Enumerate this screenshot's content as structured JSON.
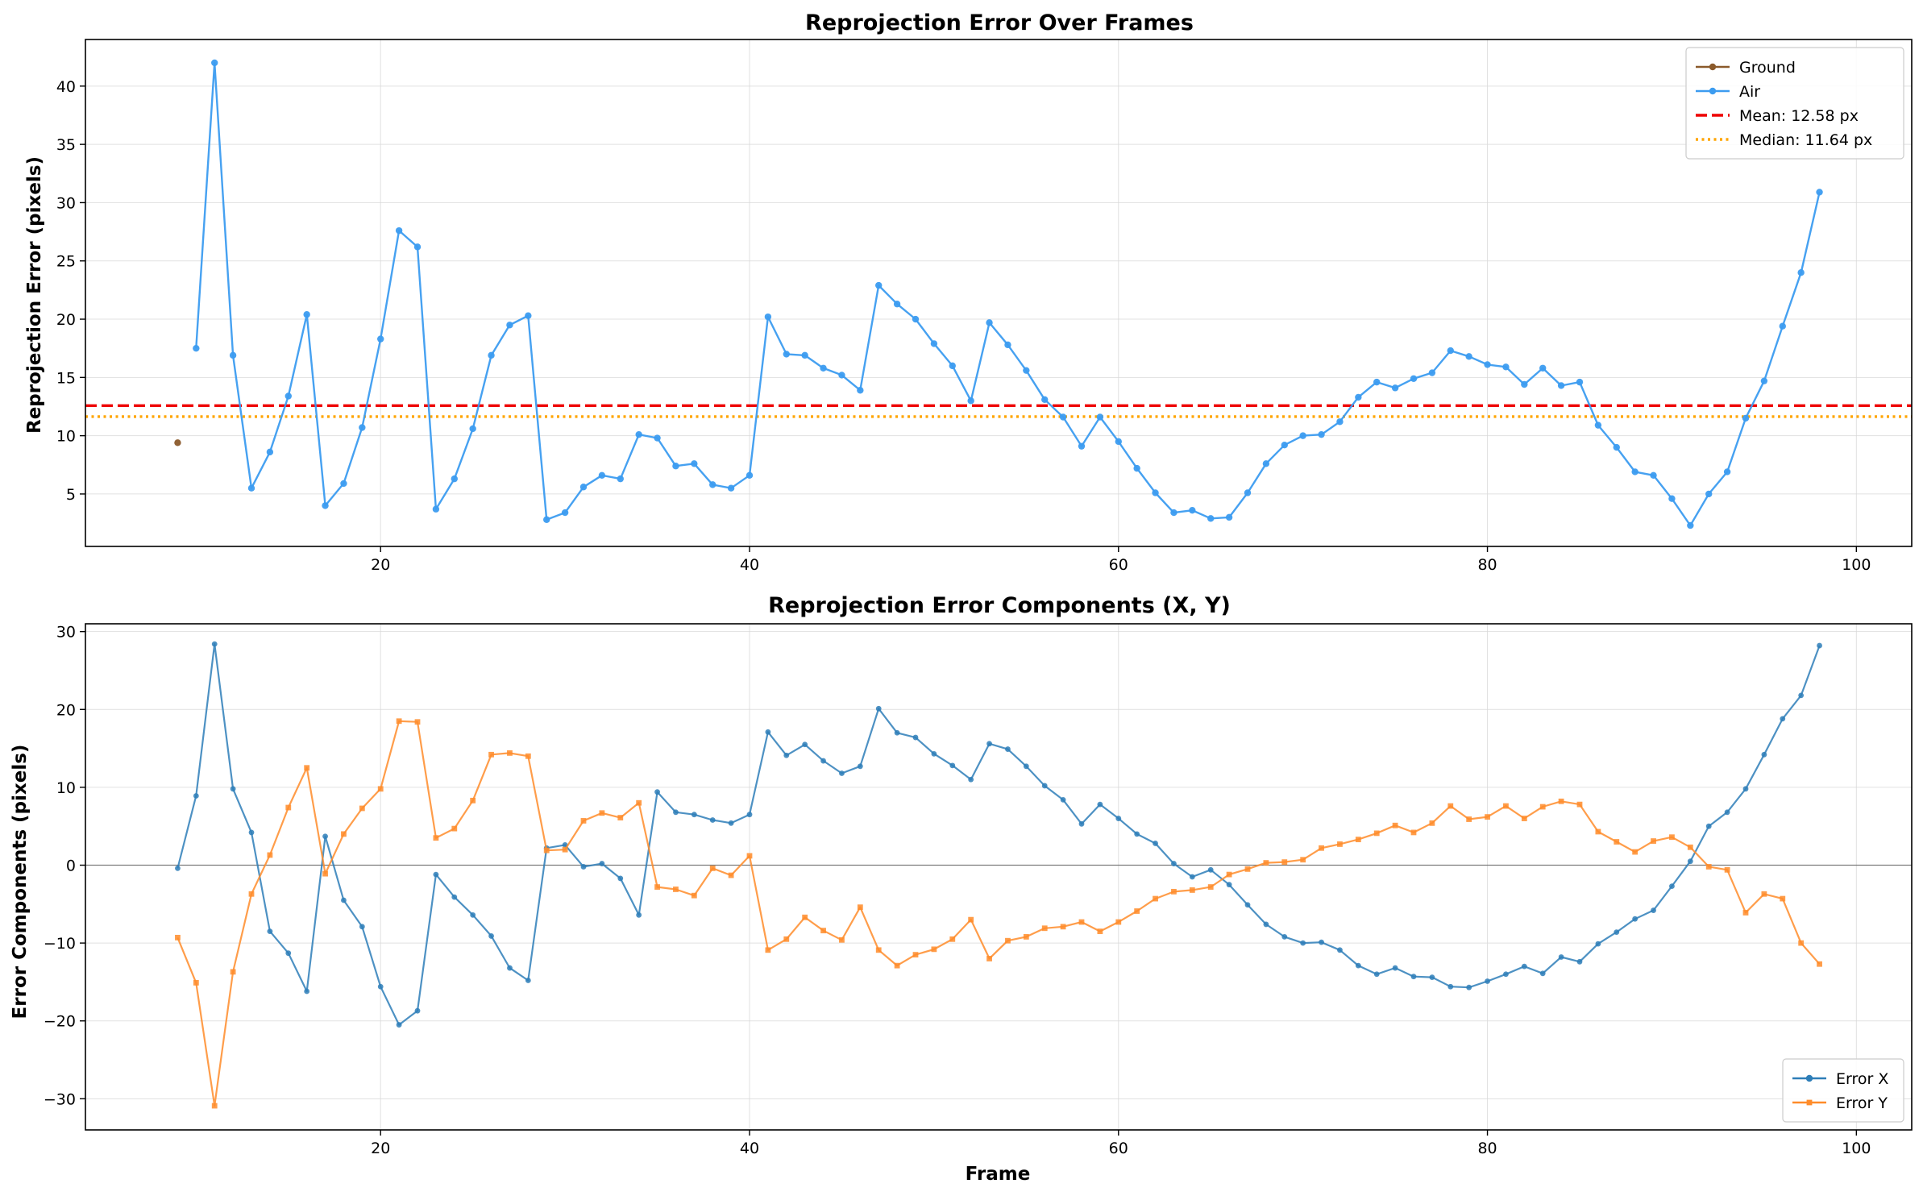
{
  "chart_data": [
    {
      "type": "line",
      "title": "Reprojection Error Over Frames",
      "xlabel": "",
      "ylabel": "Reprojection Error (pixels)",
      "xlim": [
        4,
        103
      ],
      "ylim": [
        0.5,
        44
      ],
      "x_ticks": [
        20,
        40,
        60,
        80,
        100
      ],
      "y_ticks": [
        5,
        10,
        15,
        20,
        25,
        30,
        35,
        40
      ],
      "grid": true,
      "legend_position": "top-right",
      "series": [
        {
          "name": "Ground",
          "color": "#8B5A2B",
          "marker": "circle",
          "x": [
            9
          ],
          "y": [
            9.4
          ]
        },
        {
          "name": "Air",
          "color": "#3C9CF0",
          "marker": "circle",
          "x": [
            10,
            11,
            12,
            13,
            14,
            15,
            16,
            17,
            18,
            19,
            20,
            21,
            22,
            23,
            24,
            25,
            26,
            27,
            28,
            29,
            30,
            31,
            32,
            33,
            34,
            35,
            36,
            37,
            38,
            39,
            40,
            41,
            42,
            43,
            44,
            45,
            46,
            47,
            48,
            49,
            50,
            51,
            52,
            53,
            54,
            55,
            56,
            57,
            58,
            59,
            60,
            61,
            62,
            63,
            64,
            65,
            66,
            67,
            68,
            69,
            70,
            71,
            72,
            73,
            74,
            75,
            76,
            77,
            78,
            79,
            80,
            81,
            82,
            83,
            84,
            85,
            86,
            87,
            88,
            89,
            90,
            91,
            92,
            93,
            94,
            95,
            96,
            97,
            98
          ],
          "y": [
            17.5,
            42.0,
            16.9,
            5.5,
            8.6,
            13.4,
            20.4,
            4.0,
            5.9,
            10.7,
            18.3,
            27.6,
            26.2,
            3.7,
            6.3,
            10.6,
            16.9,
            19.5,
            20.3,
            2.8,
            3.4,
            5.6,
            6.6,
            6.3,
            10.1,
            9.8,
            7.4,
            7.6,
            5.8,
            5.5,
            6.6,
            20.2,
            17.0,
            16.9,
            15.8,
            15.2,
            13.9,
            22.9,
            21.3,
            20.0,
            17.9,
            16.0,
            13.0,
            19.7,
            17.8,
            15.6,
            13.1,
            11.6,
            9.1,
            11.6,
            9.5,
            7.2,
            5.1,
            3.4,
            3.6,
            2.9,
            3.0,
            5.1,
            7.6,
            9.2,
            10.0,
            10.1,
            11.2,
            13.3,
            14.6,
            14.1,
            14.9,
            15.4,
            17.3,
            16.8,
            16.1,
            15.9,
            14.4,
            15.8,
            14.3,
            14.6,
            10.9,
            9.0,
            6.9,
            6.6,
            4.6,
            2.3,
            5.0,
            6.9,
            11.5,
            14.7,
            19.4,
            24.0,
            30.9
          ]
        }
      ],
      "reference_lines": [
        {
          "name": "Mean: 12.58 px",
          "value": 12.58,
          "color": "#EE0000",
          "style": "dashed"
        },
        {
          "name": "Median: 11.64 px",
          "value": 11.64,
          "color": "#FFA500",
          "style": "dotted"
        }
      ]
    },
    {
      "type": "line",
      "title": "Reprojection Error Components (X, Y)",
      "xlabel": "Frame",
      "ylabel": "Error Components (pixels)",
      "xlim": [
        4,
        103
      ],
      "ylim": [
        -34,
        31
      ],
      "x_ticks": [
        20,
        40,
        60,
        80,
        100
      ],
      "y_ticks": [
        -30,
        -20,
        -10,
        0,
        10,
        20,
        30
      ],
      "grid": true,
      "zero_line": true,
      "legend_position": "bottom-right",
      "series": [
        {
          "name": "Error X",
          "color": "#2E7EB8",
          "marker": "circle",
          "x": [
            9,
            10,
            11,
            12,
            13,
            14,
            15,
            16,
            17,
            18,
            19,
            20,
            21,
            22,
            23,
            24,
            25,
            26,
            27,
            28,
            29,
            30,
            31,
            32,
            33,
            34,
            35,
            36,
            37,
            38,
            39,
            40,
            41,
            42,
            43,
            44,
            45,
            46,
            47,
            48,
            49,
            50,
            51,
            52,
            53,
            54,
            55,
            56,
            57,
            58,
            59,
            60,
            61,
            62,
            63,
            64,
            65,
            66,
            67,
            68,
            69,
            70,
            71,
            72,
            73,
            74,
            75,
            76,
            77,
            78,
            79,
            80,
            81,
            82,
            83,
            84,
            85,
            86,
            87,
            88,
            89,
            90,
            91,
            92,
            93,
            94,
            95,
            96,
            97,
            98
          ],
          "y": [
            -0.4,
            8.9,
            28.4,
            9.8,
            4.2,
            -8.5,
            -11.3,
            -16.2,
            3.7,
            -4.5,
            -7.9,
            -15.6,
            -20.5,
            -18.7,
            -1.2,
            -4.1,
            -6.4,
            -9.1,
            -13.2,
            -14.8,
            2.2,
            2.6,
            -0.2,
            0.2,
            -1.7,
            -6.4,
            9.4,
            6.8,
            6.5,
            5.8,
            5.4,
            6.5,
            17.1,
            14.1,
            15.5,
            13.4,
            11.8,
            12.7,
            20.1,
            17.0,
            16.4,
            14.3,
            12.8,
            11.0,
            15.6,
            14.9,
            12.7,
            10.2,
            8.4,
            5.3,
            7.8,
            6.0,
            4.0,
            2.8,
            0.2,
            -1.5,
            -0.6,
            -2.5,
            -5.1,
            -7.6,
            -9.2,
            -10.0,
            -9.9,
            -10.9,
            -12.9,
            -14.0,
            -13.2,
            -14.3,
            -14.4,
            -15.6,
            -15.7,
            -14.9,
            -14.0,
            -13.0,
            -13.9,
            -11.8,
            -12.4,
            -10.1,
            -8.6,
            -6.9,
            -5.8,
            -2.7,
            0.5,
            5.0,
            6.8,
            9.8,
            14.2,
            18.8,
            21.8,
            28.2
          ]
        },
        {
          "name": "Error Y",
          "color": "#FF8C2A",
          "marker": "square",
          "x": [
            9,
            10,
            11,
            12,
            13,
            14,
            15,
            16,
            17,
            18,
            19,
            20,
            21,
            22,
            23,
            24,
            25,
            26,
            27,
            28,
            29,
            30,
            31,
            32,
            33,
            34,
            35,
            36,
            37,
            38,
            39,
            40,
            41,
            42,
            43,
            44,
            45,
            46,
            47,
            48,
            49,
            50,
            51,
            52,
            53,
            54,
            55,
            56,
            57,
            58,
            59,
            60,
            61,
            62,
            63,
            64,
            65,
            66,
            67,
            68,
            69,
            70,
            71,
            72,
            73,
            74,
            75,
            76,
            77,
            78,
            79,
            80,
            81,
            82,
            83,
            84,
            85,
            86,
            87,
            88,
            89,
            90,
            91,
            92,
            93,
            94,
            95,
            96,
            97,
            98
          ],
          "y": [
            -9.3,
            -15.1,
            -30.9,
            -13.7,
            -3.7,
            1.3,
            7.4,
            12.5,
            -1.1,
            4.0,
            7.3,
            9.8,
            18.5,
            18.4,
            3.5,
            4.7,
            8.3,
            14.2,
            14.4,
            14.0,
            1.9,
            2.0,
            5.7,
            6.7,
            6.1,
            8.0,
            -2.8,
            -3.1,
            -3.9,
            -0.4,
            -1.3,
            1.2,
            -10.9,
            -9.5,
            -6.7,
            -8.4,
            -9.6,
            -5.4,
            -10.9,
            -12.9,
            -11.5,
            -10.8,
            -9.5,
            -7.0,
            -12.0,
            -9.7,
            -9.2,
            -8.1,
            -7.9,
            -7.3,
            -8.5,
            -7.3,
            -5.9,
            -4.3,
            -3.4,
            -3.2,
            -2.8,
            -1.2,
            -0.5,
            0.3,
            0.4,
            0.7,
            2.2,
            2.7,
            3.3,
            4.1,
            5.1,
            4.2,
            5.4,
            7.6,
            5.9,
            6.2,
            7.6,
            6.0,
            7.5,
            8.2,
            7.8,
            4.3,
            3.0,
            1.7,
            3.1,
            3.6,
            2.3,
            -0.2,
            -0.6,
            -6.1,
            -3.7,
            -4.3,
            -10.0,
            -12.7
          ]
        }
      ]
    }
  ]
}
